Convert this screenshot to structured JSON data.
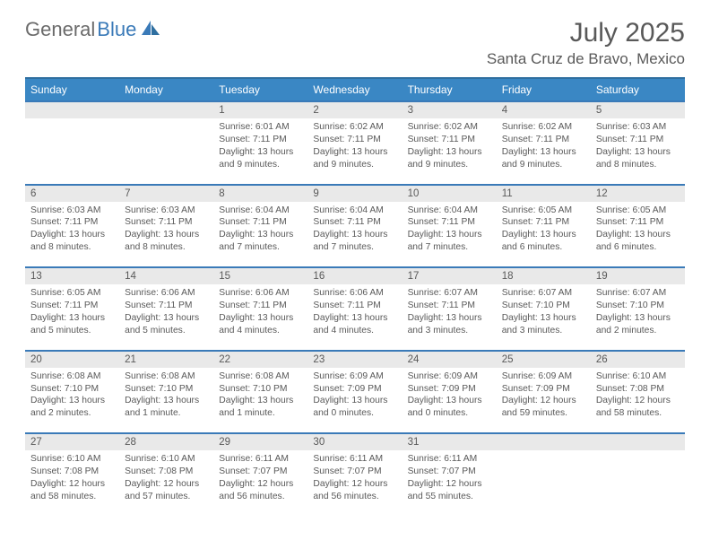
{
  "logo": {
    "part1": "General",
    "part2": "Blue"
  },
  "title": "July 2025",
  "location": "Santa Cruz de Bravo, Mexico",
  "colors": {
    "header_bg": "#3a87c4",
    "rule": "#3a7ab8",
    "daynum_bg": "#e9e9e9",
    "text": "#595959",
    "white": "#ffffff"
  },
  "daysOfWeek": [
    "Sunday",
    "Monday",
    "Tuesday",
    "Wednesday",
    "Thursday",
    "Friday",
    "Saturday"
  ],
  "weeks": [
    {
      "nums": [
        "",
        "",
        "1",
        "2",
        "3",
        "4",
        "5"
      ],
      "cells": [
        null,
        null,
        {
          "sr": "6:01 AM",
          "ss": "7:11 PM",
          "dl": "13 hours and 9 minutes."
        },
        {
          "sr": "6:02 AM",
          "ss": "7:11 PM",
          "dl": "13 hours and 9 minutes."
        },
        {
          "sr": "6:02 AM",
          "ss": "7:11 PM",
          "dl": "13 hours and 9 minutes."
        },
        {
          "sr": "6:02 AM",
          "ss": "7:11 PM",
          "dl": "13 hours and 9 minutes."
        },
        {
          "sr": "6:03 AM",
          "ss": "7:11 PM",
          "dl": "13 hours and 8 minutes."
        }
      ]
    },
    {
      "nums": [
        "6",
        "7",
        "8",
        "9",
        "10",
        "11",
        "12"
      ],
      "cells": [
        {
          "sr": "6:03 AM",
          "ss": "7:11 PM",
          "dl": "13 hours and 8 minutes."
        },
        {
          "sr": "6:03 AM",
          "ss": "7:11 PM",
          "dl": "13 hours and 8 minutes."
        },
        {
          "sr": "6:04 AM",
          "ss": "7:11 PM",
          "dl": "13 hours and 7 minutes."
        },
        {
          "sr": "6:04 AM",
          "ss": "7:11 PM",
          "dl": "13 hours and 7 minutes."
        },
        {
          "sr": "6:04 AM",
          "ss": "7:11 PM",
          "dl": "13 hours and 7 minutes."
        },
        {
          "sr": "6:05 AM",
          "ss": "7:11 PM",
          "dl": "13 hours and 6 minutes."
        },
        {
          "sr": "6:05 AM",
          "ss": "7:11 PM",
          "dl": "13 hours and 6 minutes."
        }
      ]
    },
    {
      "nums": [
        "13",
        "14",
        "15",
        "16",
        "17",
        "18",
        "19"
      ],
      "cells": [
        {
          "sr": "6:05 AM",
          "ss": "7:11 PM",
          "dl": "13 hours and 5 minutes."
        },
        {
          "sr": "6:06 AM",
          "ss": "7:11 PM",
          "dl": "13 hours and 5 minutes."
        },
        {
          "sr": "6:06 AM",
          "ss": "7:11 PM",
          "dl": "13 hours and 4 minutes."
        },
        {
          "sr": "6:06 AM",
          "ss": "7:11 PM",
          "dl": "13 hours and 4 minutes."
        },
        {
          "sr": "6:07 AM",
          "ss": "7:11 PM",
          "dl": "13 hours and 3 minutes."
        },
        {
          "sr": "6:07 AM",
          "ss": "7:10 PM",
          "dl": "13 hours and 3 minutes."
        },
        {
          "sr": "6:07 AM",
          "ss": "7:10 PM",
          "dl": "13 hours and 2 minutes."
        }
      ]
    },
    {
      "nums": [
        "20",
        "21",
        "22",
        "23",
        "24",
        "25",
        "26"
      ],
      "cells": [
        {
          "sr": "6:08 AM",
          "ss": "7:10 PM",
          "dl": "13 hours and 2 minutes."
        },
        {
          "sr": "6:08 AM",
          "ss": "7:10 PM",
          "dl": "13 hours and 1 minute."
        },
        {
          "sr": "6:08 AM",
          "ss": "7:10 PM",
          "dl": "13 hours and 1 minute."
        },
        {
          "sr": "6:09 AM",
          "ss": "7:09 PM",
          "dl": "13 hours and 0 minutes."
        },
        {
          "sr": "6:09 AM",
          "ss": "7:09 PM",
          "dl": "13 hours and 0 minutes."
        },
        {
          "sr": "6:09 AM",
          "ss": "7:09 PM",
          "dl": "12 hours and 59 minutes."
        },
        {
          "sr": "6:10 AM",
          "ss": "7:08 PM",
          "dl": "12 hours and 58 minutes."
        }
      ]
    },
    {
      "nums": [
        "27",
        "28",
        "29",
        "30",
        "31",
        "",
        ""
      ],
      "cells": [
        {
          "sr": "6:10 AM",
          "ss": "7:08 PM",
          "dl": "12 hours and 58 minutes."
        },
        {
          "sr": "6:10 AM",
          "ss": "7:08 PM",
          "dl": "12 hours and 57 minutes."
        },
        {
          "sr": "6:11 AM",
          "ss": "7:07 PM",
          "dl": "12 hours and 56 minutes."
        },
        {
          "sr": "6:11 AM",
          "ss": "7:07 PM",
          "dl": "12 hours and 56 minutes."
        },
        {
          "sr": "6:11 AM",
          "ss": "7:07 PM",
          "dl": "12 hours and 55 minutes."
        },
        null,
        null
      ]
    }
  ]
}
